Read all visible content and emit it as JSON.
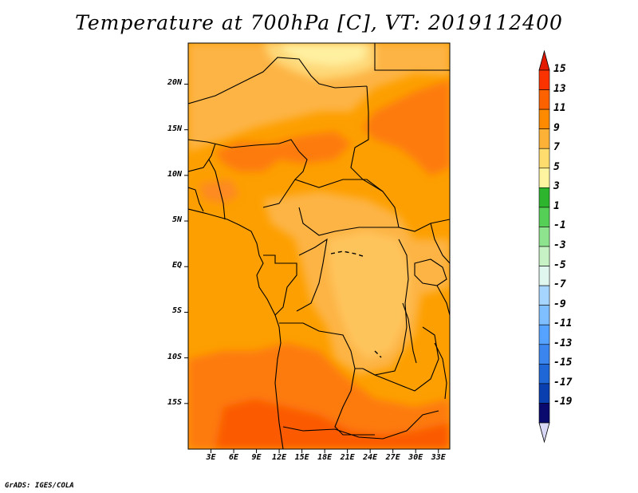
{
  "title": "Temperature at 700hPa [C], VT: 2019112400",
  "credit": "GrADS: IGES/COLA",
  "map": {
    "projection": "latlon",
    "lon_range": [
      0,
      34.5
    ],
    "lat_range": [
      -20,
      24.5
    ],
    "lat_ticks": [
      {
        "value": 20,
        "label": "20N"
      },
      {
        "value": 15,
        "label": "15N"
      },
      {
        "value": 10,
        "label": "10N"
      },
      {
        "value": 5,
        "label": "5N"
      },
      {
        "value": 0,
        "label": "EQ"
      },
      {
        "value": -5,
        "label": "5S"
      },
      {
        "value": -10,
        "label": "10S"
      },
      {
        "value": -15,
        "label": "15S"
      }
    ],
    "lon_ticks": [
      {
        "value": 3,
        "label": "3E"
      },
      {
        "value": 6,
        "label": "6E"
      },
      {
        "value": 9,
        "label": "9E"
      },
      {
        "value": 12,
        "label": "12E"
      },
      {
        "value": 15,
        "label": "15E"
      },
      {
        "value": 18,
        "label": "18E"
      },
      {
        "value": 21,
        "label": "21E"
      },
      {
        "value": 24,
        "label": "24E"
      },
      {
        "value": 27,
        "label": "27E"
      },
      {
        "value": 30,
        "label": "30E"
      },
      {
        "value": 33,
        "label": "33E"
      }
    ],
    "background_color": "#fd9f00"
  },
  "colorbar": {
    "labels": [
      "15",
      "13",
      "11",
      "9",
      "7",
      "5",
      "3",
      "1",
      "-1",
      "-3",
      "-5",
      "-7",
      "-9",
      "-11",
      "-13",
      "-15",
      "-17",
      "-19"
    ],
    "colors": [
      "#fb3300",
      "#fd6200",
      "#fd8a00",
      "#fdb137",
      "#fedd6e",
      "#fff5a0",
      "#2db52d",
      "#55cf55",
      "#8ee38e",
      "#c6f2c6",
      "#e0f7f0",
      "#a6d6ff",
      "#7fbeff",
      "#55a3ff",
      "#3b86ee",
      "#1f66d6",
      "#0a3fb0",
      "#0a0a6e"
    ],
    "top_triangle_color": "#e31a00",
    "bottom_triangle_color": "#d8d8f6"
  }
}
